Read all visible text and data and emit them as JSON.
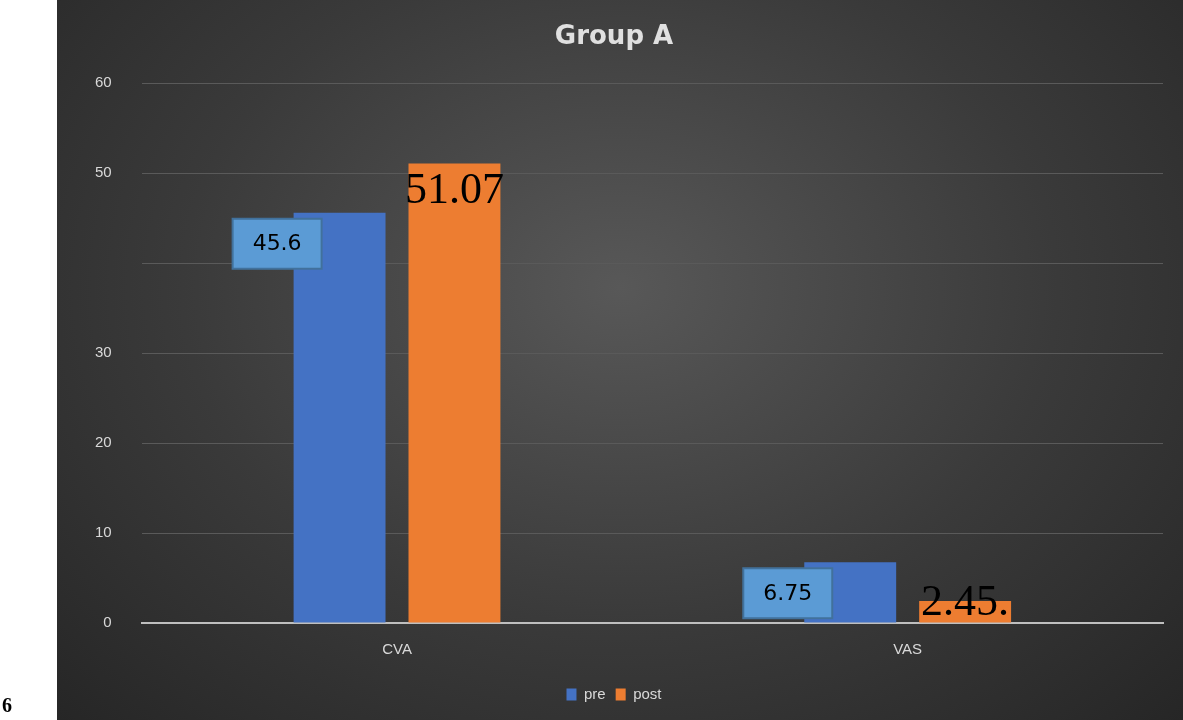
{
  "chart_data": {
    "type": "bar",
    "title": "Group A",
    "categories": [
      "CVA",
      "VAS"
    ],
    "series": [
      {
        "name": "pre",
        "color": "#4472c4",
        "values": [
          45.6,
          6.75
        ],
        "value_labels": [
          "45.6",
          "6.75"
        ]
      },
      {
        "name": "post",
        "color": "#ed7d31",
        "values": [
          51.07,
          2.45
        ],
        "value_labels": [
          "51.07",
          "2.45."
        ]
      }
    ],
    "ylim": [
      0,
      60
    ],
    "yticks": [
      0,
      10,
      20,
      30,
      {
        "value": 40,
        "label": null
      },
      50,
      60
    ],
    "grid": "y",
    "legend": "bottom",
    "annotations": [
      "6"
    ]
  }
}
